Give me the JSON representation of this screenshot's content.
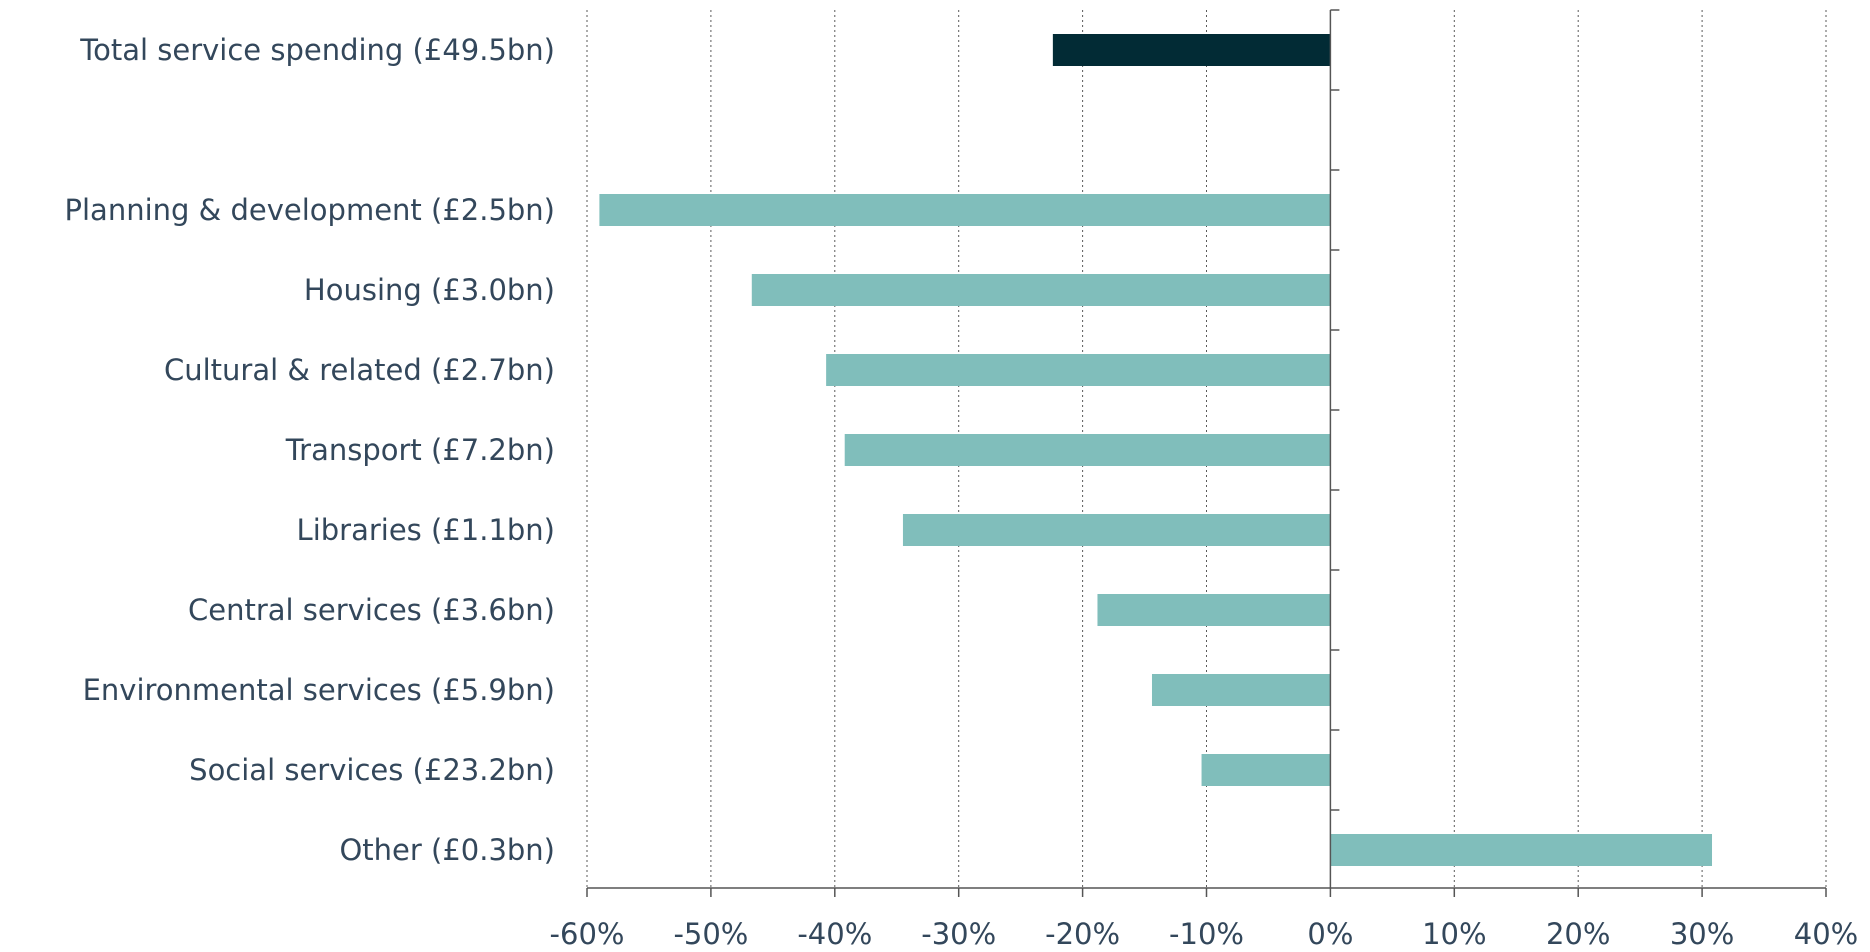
{
  "chart_data": {
    "type": "bar",
    "orientation": "horizontal",
    "title": "",
    "xlabel": "",
    "ylabel": "",
    "xlim": [
      -60,
      40
    ],
    "x_ticks": [
      -60,
      -50,
      -40,
      -30,
      -20,
      -10,
      0,
      10,
      20,
      30,
      40
    ],
    "x_tick_labels": [
      "-60%",
      "-50%",
      "-40%",
      "-30%",
      "-20%",
      "-10%",
      "0%",
      "10%",
      "20%",
      "30%",
      "40%"
    ],
    "grid": "vertical dotted",
    "legend": "none",
    "categories": [
      "Total service spending (£49.5bn)",
      "Planning & development (£2.5bn)",
      "Housing (£3.0bn)",
      "Cultural & related (£2.7bn)",
      "Transport (£7.2bn)",
      "Libraries (£1.1bn)",
      "Central services (£3.6bn)",
      "Environmental services (£5.9bn)",
      "Social services (£23.2bn)",
      "Other (£0.3bn)"
    ],
    "values": [
      -22.4,
      -59,
      -46.7,
      -40.7,
      -39.2,
      -34.5,
      -18.8,
      -14.4,
      -10.4,
      30.8
    ],
    "colors": {
      "total": "#022b35",
      "category": "#80bebb"
    }
  }
}
